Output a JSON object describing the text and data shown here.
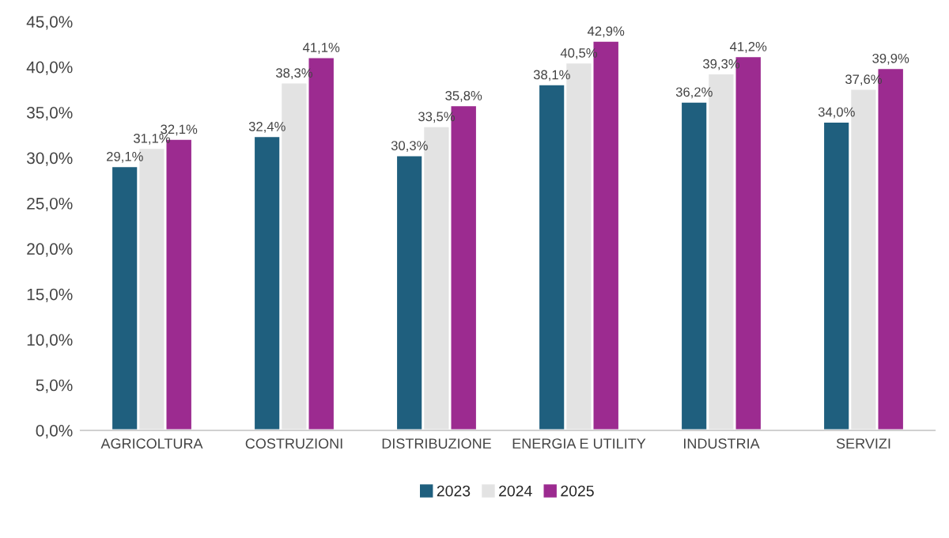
{
  "chart_data": {
    "type": "bar",
    "categories": [
      "AGRICOLTURA",
      "COSTRUZIONI",
      "DISTRIBUZIONE",
      "ENERGIA E UTILITY",
      "INDUSTRIA",
      "SERVIZI"
    ],
    "series": [
      {
        "name": "2023",
        "color": "#1f5f7e",
        "values": [
          29.1,
          32.4,
          30.3,
          38.1,
          36.2,
          34.0
        ],
        "value_labels": [
          "29,1%",
          "32,4%",
          "30,3%",
          "38,1%",
          "36,2%",
          "34,0%"
        ]
      },
      {
        "name": "2024",
        "color": "#e3e3e3",
        "values": [
          31.1,
          38.3,
          33.5,
          40.5,
          39.3,
          37.6
        ],
        "value_labels": [
          "31,1%",
          "38,3%",
          "33,5%",
          "40,5%",
          "39,3%",
          "37,6%"
        ]
      },
      {
        "name": "2025",
        "color": "#9c2b90",
        "values": [
          32.1,
          41.1,
          35.8,
          42.9,
          41.2,
          39.9
        ],
        "value_labels": [
          "32,1%",
          "41,1%",
          "35,8%",
          "42,9%",
          "41,2%",
          "39,9%"
        ]
      }
    ],
    "ylim": [
      0,
      45
    ],
    "yticks": [
      {
        "value": 0,
        "label": "0,0%"
      },
      {
        "value": 5,
        "label": "5,0%"
      },
      {
        "value": 10,
        "label": "10,0%"
      },
      {
        "value": 15,
        "label": "15,0%"
      },
      {
        "value": 20,
        "label": "20,0%"
      },
      {
        "value": 25,
        "label": "25,0%"
      },
      {
        "value": 30,
        "label": "30,0%"
      },
      {
        "value": 35,
        "label": "35,0%"
      },
      {
        "value": 40,
        "label": "40,0%"
      },
      {
        "value": 45,
        "label": "45,0%"
      }
    ],
    "grid": false,
    "legend": "bottom"
  }
}
